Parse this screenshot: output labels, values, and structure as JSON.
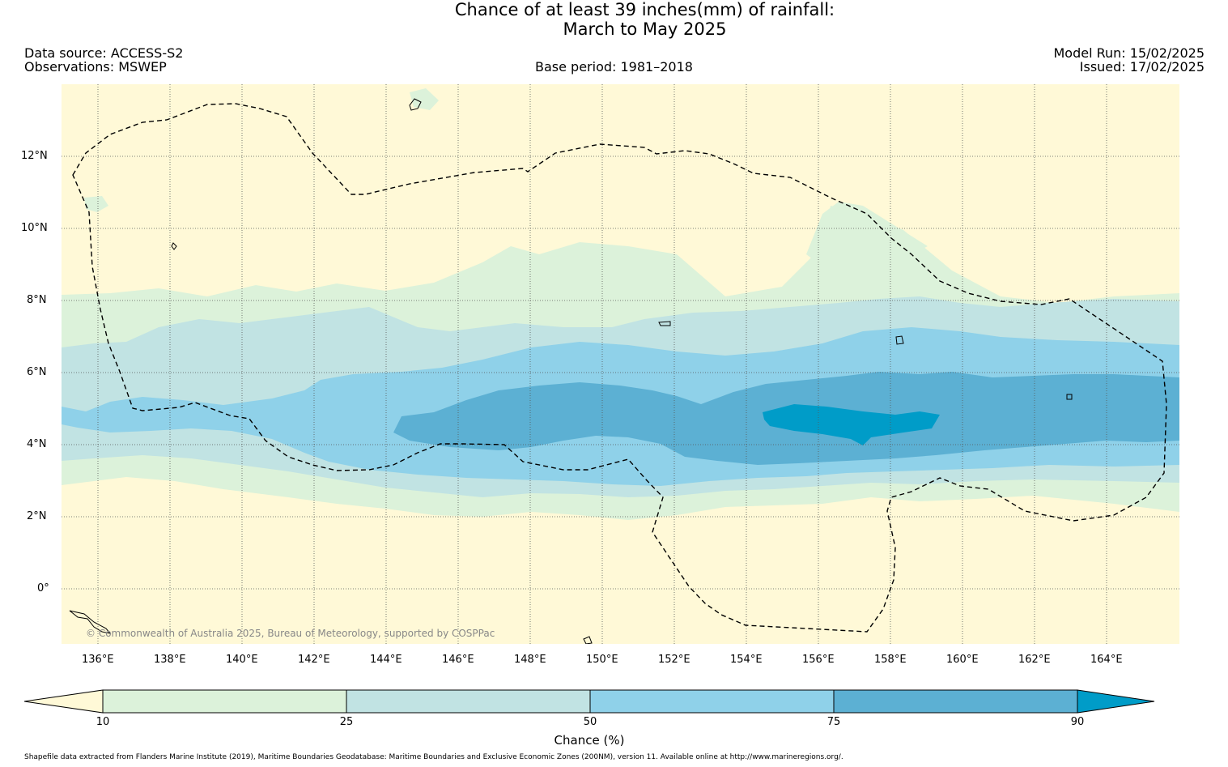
{
  "title_line1": "Chance of at least 39 inches(mm) of rainfall:",
  "title_line2": "March to May 2025",
  "header": {
    "data_source": "Data source: ACCESS-S2",
    "observations": "Observations: MSWEP",
    "base_period": "Base period: 1981–2018",
    "model_run": "Model Run: 15/02/2025",
    "issued": "Issued: 17/02/2025"
  },
  "map": {
    "lon_ticks": [
      "136°E",
      "138°E",
      "140°E",
      "142°E",
      "144°E",
      "146°E",
      "148°E",
      "150°E",
      "152°E",
      "154°E",
      "156°E",
      "158°E",
      "160°E",
      "162°E",
      "164°E"
    ],
    "lat_ticks": [
      "12°N",
      "10°N",
      "8°N",
      "6°N",
      "4°N",
      "2°N",
      "0°"
    ],
    "lon_range": [
      135,
      166
    ],
    "lat_range": [
      -1.5,
      14
    ],
    "copyright": "© Commonwealth of Australia 2025, Bureau of Meteorology, supported by COSPPac",
    "colors": {
      "below_10": "#fff9d7",
      "10_25": "#dcf2da",
      "25_50": "#c1e3e3",
      "50_75": "#8fd1e9",
      "75_90": "#5cb0d3",
      "above_90": "#009cc8"
    }
  },
  "colorbar": {
    "labels": [
      "10",
      "25",
      "50",
      "75",
      "90"
    ],
    "title": "Chance (%)"
  },
  "credit": "Shapefile data extracted from Flanders Marine Institute (2019), Maritime Boundaries Geodatabase: Maritime Boundaries and Exclusive Economic Zones (200NM), version 11. Available online at http://www.marineregions.org/."
}
